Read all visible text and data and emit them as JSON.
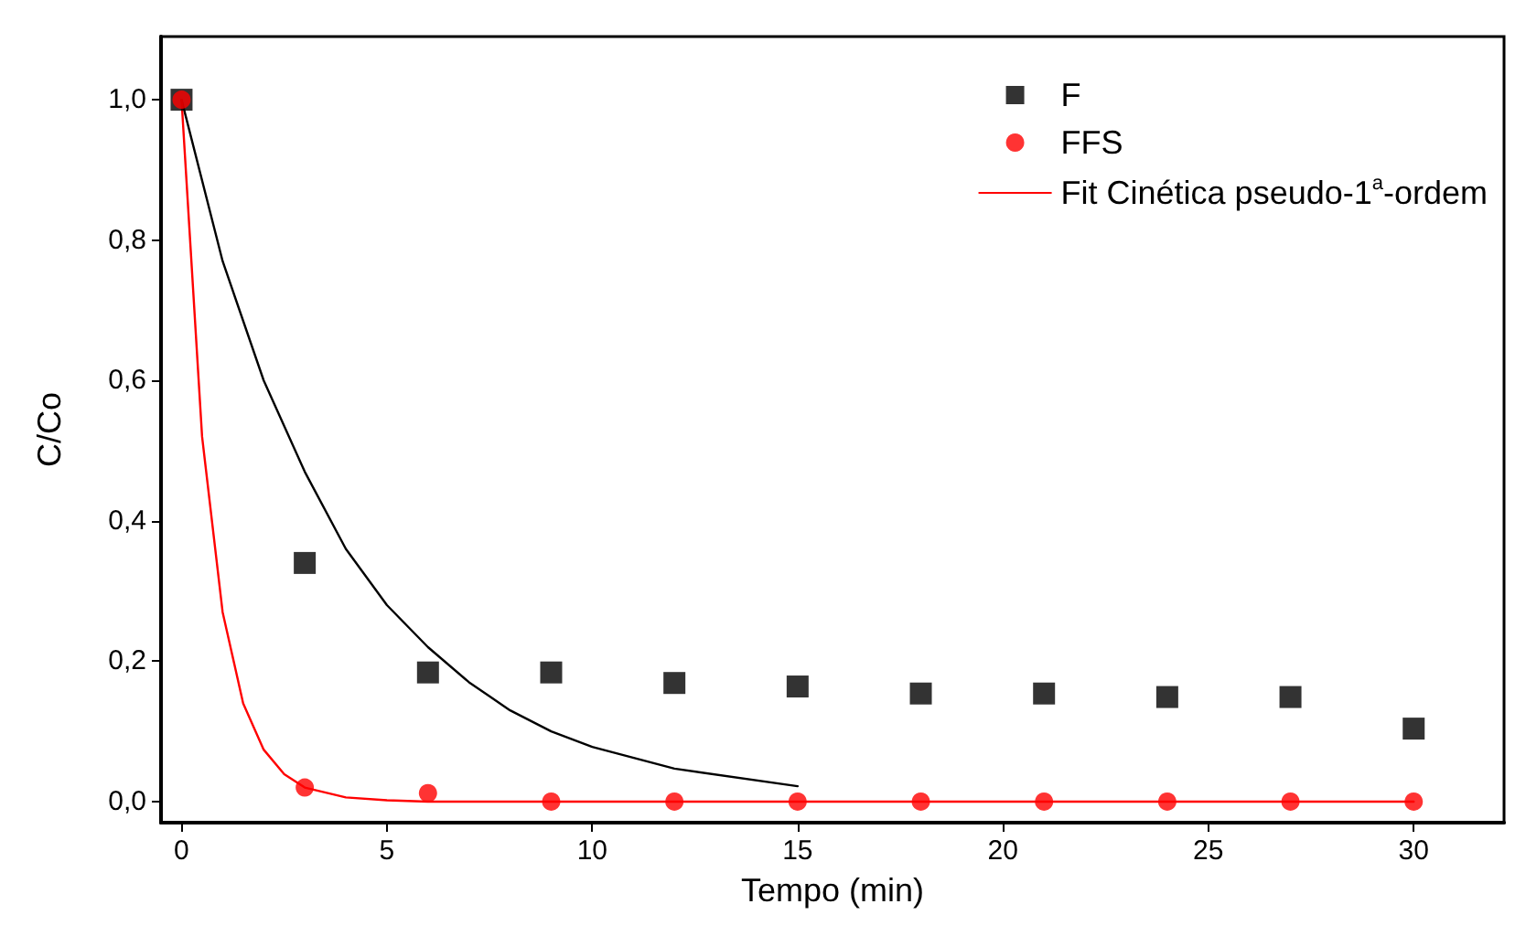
{
  "chart_data": {
    "type": "scatter",
    "xlabel": "Tempo (min)",
    "ylabel": "C/Co",
    "xlim": [
      -0.5,
      32.2
    ],
    "xticks": [
      0,
      5,
      10,
      15,
      20,
      25,
      30
    ],
    "ylim": [
      -0.03,
      1.09
    ],
    "yticks": [
      {
        "value": 0,
        "label": "0,0"
      },
      {
        "value": 0.2,
        "label": "0,2"
      },
      {
        "value": 0.4,
        "label": "0,4"
      },
      {
        "value": 0.6,
        "label": "0,6"
      },
      {
        "value": 0.8,
        "label": "0,8"
      },
      {
        "value": 1.0,
        "label": "1,0"
      }
    ],
    "grid": false,
    "legend": "top right",
    "series": [
      {
        "name": "F",
        "marker": "square",
        "color": "#000000",
        "x": [
          0,
          3,
          6,
          9,
          12,
          15,
          18,
          21,
          24,
          27,
          30
        ],
        "values": [
          1.0,
          0.34,
          0.184,
          0.184,
          0.169,
          0.164,
          0.154,
          0.154,
          0.149,
          0.149,
          0.104
        ]
      },
      {
        "name": "FFS",
        "marker": "circle",
        "color": "#ff0000",
        "x": [
          0,
          3,
          6,
          9,
          12,
          15,
          18,
          21,
          24,
          27,
          30
        ],
        "values": [
          1.0,
          0.02,
          0.012,
          0,
          0,
          0,
          0,
          0,
          0,
          0,
          0
        ]
      },
      {
        "type": "line",
        "marker": "none",
        "line_style": "solid",
        "color": "#000000",
        "x": [
          0,
          1,
          2,
          3,
          4,
          5,
          6,
          7,
          8,
          9,
          10,
          12,
          15
        ],
        "values": [
          1.0,
          0.77,
          0.6,
          0.47,
          0.36,
          0.28,
          0.22,
          0.17,
          0.13,
          0.1,
          0.078,
          0.047,
          0.022
        ]
      },
      {
        "name": "Fit Cinética pseudo-1$^{a}$-ordem",
        "type": "line",
        "marker": "none",
        "line_style": "solid",
        "color": "#ff0000",
        "x": [
          0,
          0.5,
          1,
          1.5,
          2,
          2.5,
          3,
          4,
          5,
          6,
          30
        ],
        "values": [
          1.0,
          0.52,
          0.27,
          0.14,
          0.074,
          0.039,
          0.02,
          0.006,
          0.002,
          0,
          0
        ]
      }
    ]
  }
}
